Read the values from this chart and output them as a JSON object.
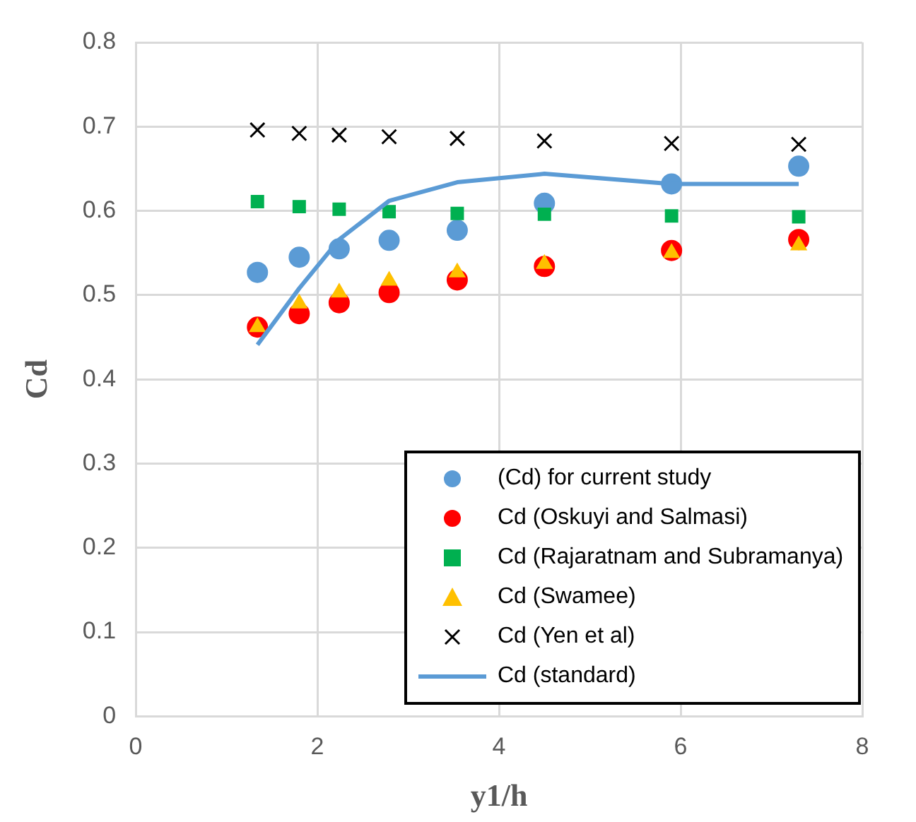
{
  "chart_data": {
    "type": "scatter",
    "xlabel": "y1/h",
    "ylabel": "Cd",
    "xlim": [
      0,
      8
    ],
    "xticks": [
      0,
      2,
      4,
      6,
      8
    ],
    "ylim": [
      0,
      0.8
    ],
    "yticks": [
      0,
      0.1,
      0.2,
      0.3,
      0.4,
      0.5,
      0.6,
      0.7,
      0.8
    ],
    "grid": true,
    "legend": "bottom right",
    "x": [
      1.34,
      1.8,
      2.24,
      2.79,
      3.54,
      4.5,
      5.9,
      7.3
    ],
    "series": [
      {
        "name": "(Cd) for current study",
        "color": "#5b9bd5",
        "marker": "circle",
        "values": [
          0.527,
          0.545,
          0.555,
          0.565,
          0.577,
          0.609,
          0.632,
          0.653
        ]
      },
      {
        "name": "Cd (Oskuyi and Salmasi)",
        "color": "#ff0000",
        "marker": "circle",
        "values": [
          0.462,
          0.478,
          0.491,
          0.503,
          0.518,
          0.534,
          0.553,
          0.566
        ]
      },
      {
        "name": "Cd (Rajaratnam and Subramanya)",
        "color": "#00b050",
        "marker": "square",
        "values": [
          0.611,
          0.605,
          0.602,
          0.599,
          0.597,
          0.596,
          0.594,
          0.593
        ]
      },
      {
        "name": "Cd (Swamee)",
        "color": "#ffc000",
        "marker": "triangle",
        "values": [
          0.462,
          0.49,
          0.503,
          0.517,
          0.527,
          0.537,
          0.55,
          0.559
        ]
      },
      {
        "name": "Cd (Yen et al)",
        "color": "#000000",
        "marker": "cross",
        "values": [
          0.696,
          0.692,
          0.69,
          0.688,
          0.686,
          0.683,
          0.68,
          0.679
        ]
      },
      {
        "name": "Cd (standard)",
        "color": "#5b9bd5",
        "type": "line",
        "marker": "none",
        "values": [
          0.441,
          0.508,
          0.566,
          0.612,
          0.634,
          0.644,
          0.632,
          0.632
        ]
      }
    ]
  }
}
